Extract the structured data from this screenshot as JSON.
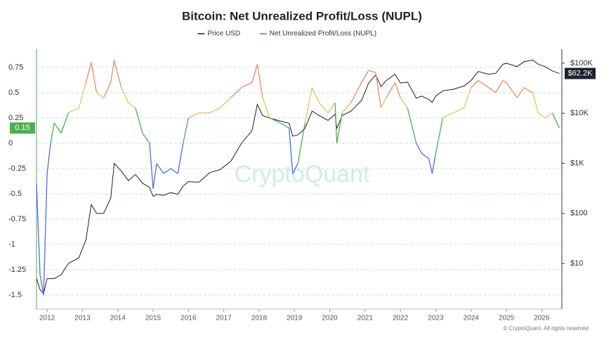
{
  "chart_data": {
    "type": "line",
    "title": "Bitcoin: Net Unrealized Profit/Loss (NUPL)",
    "watermark": "CryptoQuant",
    "credit": "© CryptoQuant. All rights reserved",
    "x": [
      2011.7,
      2011.8,
      2011.9,
      2012.0,
      2012.1,
      2012.2,
      2012.4,
      2012.6,
      2012.9,
      2013.1,
      2013.25,
      2013.4,
      2013.6,
      2013.8,
      2013.9,
      2014.1,
      2014.3,
      2014.5,
      2014.7,
      2014.9,
      2015.0,
      2015.1,
      2015.3,
      2015.5,
      2015.7,
      2015.85,
      2016.0,
      2016.3,
      2016.6,
      2016.9,
      2017.2,
      2017.5,
      2017.8,
      2017.95,
      2018.1,
      2018.3,
      2018.6,
      2018.85,
      2018.95,
      2019.1,
      2019.3,
      2019.5,
      2019.7,
      2019.95,
      2020.15,
      2020.2,
      2020.35,
      2020.6,
      2020.9,
      2021.1,
      2021.3,
      2021.45,
      2021.6,
      2021.85,
      2022.0,
      2022.2,
      2022.45,
      2022.6,
      2022.8,
      2022.9,
      2023.0,
      2023.2,
      2023.5,
      2023.8,
      2024.0,
      2024.2,
      2024.5,
      2024.7,
      2024.9,
      2025.0,
      2025.3,
      2025.5,
      2025.75,
      2025.9,
      2026.1,
      2026.3,
      2026.5
    ],
    "series": [
      {
        "name": "Price USD",
        "color": "#1f1f1f",
        "axis": "y2",
        "values": [
          5,
          3,
          2.5,
          5,
          5,
          5,
          6,
          10,
          13,
          30,
          150,
          100,
          100,
          200,
          1000,
          700,
          450,
          600,
          400,
          330,
          220,
          240,
          230,
          260,
          240,
          350,
          430,
          420,
          650,
          750,
          1100,
          2500,
          4500,
          15000,
          9000,
          8000,
          7000,
          6300,
          3500,
          3700,
          5000,
          11000,
          9000,
          7200,
          9500,
          5000,
          9000,
          11000,
          18000,
          40000,
          58000,
          34000,
          45000,
          60000,
          40000,
          42000,
          20000,
          22000,
          19000,
          16500,
          22000,
          28000,
          30000,
          35000,
          45000,
          68000,
          60000,
          63000,
          95000,
          100000,
          85000,
          107000,
          115000,
          95000,
          85000,
          70000,
          62200
        ],
        "value_labels": [
          null,
          null,
          null,
          null,
          null,
          null,
          null,
          null,
          null,
          null,
          null,
          null,
          null,
          null,
          null,
          null,
          null,
          null,
          null,
          null,
          null,
          null,
          null,
          null,
          null,
          null,
          null,
          null,
          null,
          null,
          null,
          null,
          null,
          null,
          null,
          null,
          null,
          null,
          null,
          null,
          null,
          null,
          null,
          null,
          null,
          null,
          null,
          null,
          null,
          null,
          null,
          null,
          null,
          null,
          null,
          null,
          null,
          null,
          null,
          null,
          null,
          null,
          null,
          null,
          null,
          null,
          null,
          null,
          null,
          null,
          null,
          null,
          null,
          null,
          null,
          null,
          "$62.2K"
        ]
      },
      {
        "name": "Net Unrealized Profit/Loss (NUPL)",
        "color": "#4c6fe0",
        "zone_colors": [
          "#4c6fe0",
          "#4caf50",
          "#e8c15a",
          "#ec8b5e",
          "#e0605a"
        ],
        "values": [
          -0.4,
          -1.3,
          -1.5,
          -0.3,
          0.0,
          0.2,
          0.1,
          0.3,
          0.35,
          0.6,
          0.8,
          0.5,
          0.45,
          0.6,
          0.82,
          0.55,
          0.4,
          0.35,
          0.1,
          0.0,
          -0.45,
          -0.2,
          -0.3,
          -0.25,
          -0.3,
          0.0,
          0.25,
          0.3,
          0.3,
          0.35,
          0.45,
          0.55,
          0.6,
          0.78,
          0.45,
          0.25,
          0.2,
          0.15,
          -0.3,
          -0.2,
          0.2,
          0.55,
          0.4,
          0.3,
          0.4,
          0.0,
          0.3,
          0.4,
          0.6,
          0.72,
          0.7,
          0.35,
          0.45,
          0.6,
          0.45,
          0.35,
          0.0,
          -0.1,
          -0.15,
          -0.3,
          -0.1,
          0.25,
          0.3,
          0.35,
          0.55,
          0.62,
          0.55,
          0.5,
          0.62,
          0.6,
          0.45,
          0.55,
          0.5,
          0.3,
          0.25,
          0.3,
          0.15
        ]
      }
    ],
    "xlim": [
      2011.7,
      2026.57
    ],
    "xticks": [
      2012,
      2013,
      2014,
      2015,
      2016,
      2017,
      2018,
      2019,
      2020,
      2021,
      2022,
      2023,
      2024,
      2025,
      2026
    ],
    "ylim": [
      -1.64,
      0.93
    ],
    "yticks": [
      0.75,
      0.5,
      0.25,
      0,
      -0.25,
      -0.5,
      -0.75,
      -1,
      -1.25,
      -1.5
    ],
    "y2lim": [
      1.23,
      190000
    ],
    "y2log": true,
    "y2ticks": [
      {
        "value": 100000,
        "label": "$100K"
      },
      {
        "value": 10000,
        "label": "$10K"
      },
      {
        "value": 1000,
        "label": "$1K"
      },
      {
        "value": 100,
        "label": "$100"
      },
      {
        "value": 10,
        "label": "$10"
      }
    ],
    "grid": true
  }
}
